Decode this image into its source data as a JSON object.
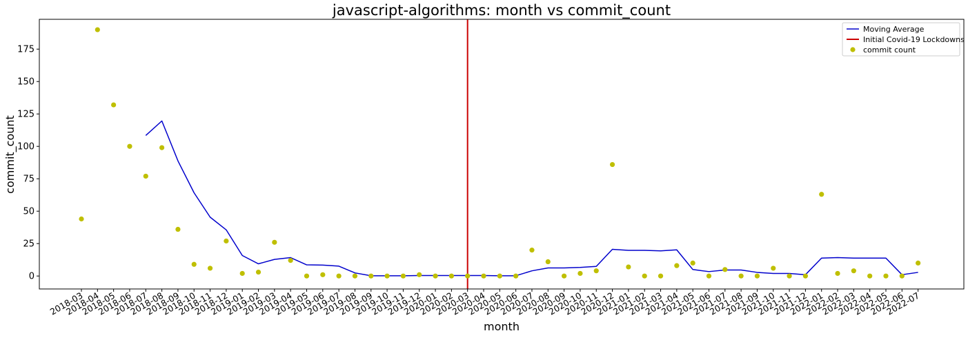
{
  "chart_data": {
    "type": "line",
    "title": "javascript-algorithms: month vs commit_count",
    "xlabel": "month",
    "ylabel": "commit_count",
    "ylim": [
      -10,
      198
    ],
    "yticks": [
      0,
      25,
      50,
      75,
      100,
      125,
      150,
      175
    ],
    "grid": false,
    "legend_position": "top-right",
    "categories": [
      "2018-03",
      "2018-04",
      "2018-05",
      "2018-06",
      "2018-07",
      "2018-08",
      "2018-09",
      "2018-10",
      "2018-11",
      "2018-12",
      "2019-01",
      "2019-02",
      "2019-03",
      "2019-04",
      "2019-05",
      "2019-06",
      "2019-07",
      "2019-08",
      "2019-09",
      "2019-10",
      "2019-11",
      "2019-12",
      "2020-01",
      "2020-02",
      "2020-03",
      "2020-04",
      "2020-05",
      "2020-06",
      "2020-07",
      "2020-08",
      "2020-09",
      "2020-10",
      "2020-11",
      "2020-12",
      "2021-01",
      "2021-02",
      "2021-03",
      "2021-04",
      "2021-05",
      "2021-06",
      "2021-07",
      "2021-08",
      "2021-09",
      "2021-10",
      "2021-11",
      "2021-12",
      "2022-01",
      "2022-02",
      "2022-03",
      "2022-04",
      "2022-05",
      "2022-06",
      "2022-07"
    ],
    "series": [
      {
        "name": "Moving Average",
        "kind": "line",
        "color": "#0000cc",
        "values": [
          null,
          null,
          null,
          null,
          108.4,
          119.6,
          88.8,
          64.2,
          45.4,
          35.6,
          15.8,
          9.4,
          12.8,
          14.2,
          8.6,
          8.4,
          7.6,
          2.4,
          0.2,
          0.2,
          0.2,
          0.4,
          0.4,
          0.4,
          0.4,
          0.4,
          0.2,
          0.2,
          4.0,
          6.2,
          6.2,
          6.6,
          7.4,
          20.6,
          19.8,
          19.8,
          19.4,
          20.2,
          5.0,
          3.4,
          4.6,
          4.6,
          2.8,
          2.0,
          2.0,
          1.0,
          13.8,
          14.2,
          13.8,
          13.8,
          13.8,
          1.0,
          2.8
        ]
      },
      {
        "name": "commit count",
        "kind": "scatter",
        "color": "#bfbf00",
        "values": [
          44,
          190,
          132,
          100,
          77,
          99,
          36,
          9,
          6,
          27,
          2,
          3,
          26,
          12,
          0,
          1,
          0,
          0,
          0,
          0,
          0,
          1,
          0,
          0,
          0,
          0,
          0,
          0,
          20,
          11,
          0,
          2,
          4,
          86,
          7,
          0,
          0,
          8,
          10,
          0,
          5,
          0,
          0,
          6,
          0,
          0,
          63,
          2,
          4,
          0,
          0,
          0,
          10
        ]
      }
    ],
    "vlines": [
      {
        "name": "Initial Covid-19 Lockdowns",
        "x": "2020-03",
        "color": "#cc0000"
      }
    ]
  }
}
